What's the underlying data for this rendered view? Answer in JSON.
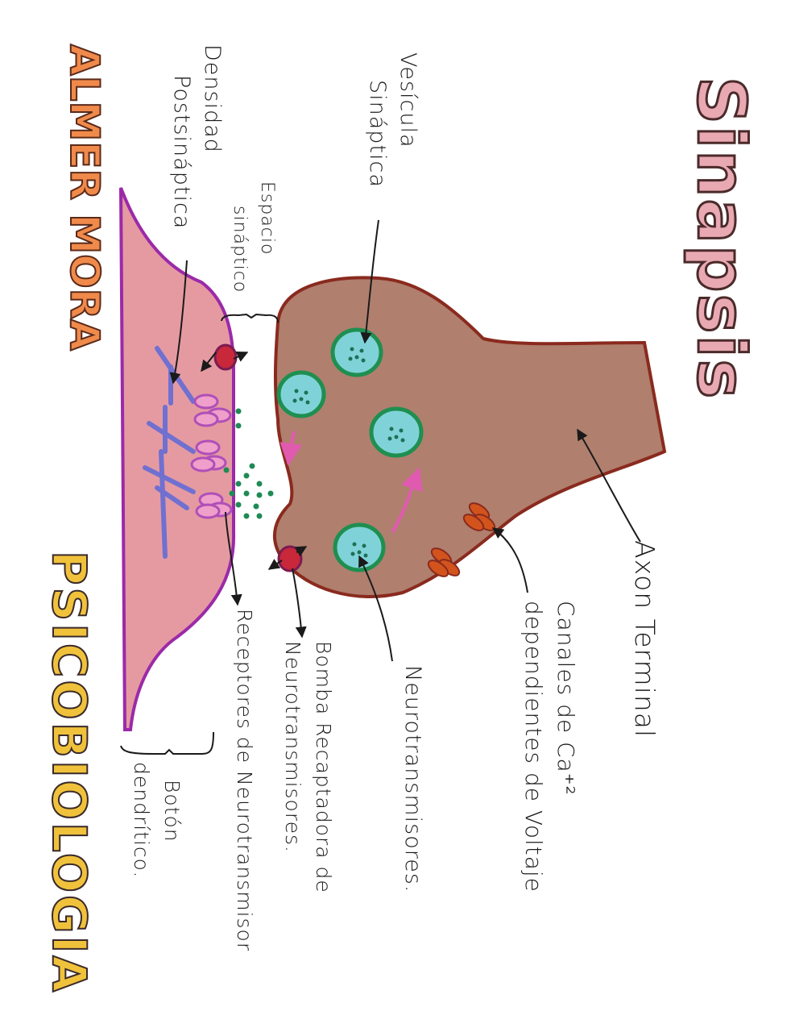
{
  "title": "Sinapsis",
  "side_title": "PSICOBIOLOGIA",
  "author": {
    "line1": "ALMER",
    "line2": "MORA"
  },
  "labels": {
    "vesicula": {
      "line1": "Vesícula",
      "line2": "Sináptica"
    },
    "densidad": {
      "line1": "Densidad",
      "line2": "Postsináptica"
    },
    "espacio": {
      "line1": "Espacio",
      "line2": "sináptico"
    },
    "axon": "Axon Terminal",
    "canales": {
      "line1": "Canales de Ca⁺²",
      "line2": "dependientes de Voltaje"
    },
    "neurotransmisores": "Neurotransmisores.",
    "bomba": {
      "line1": "Bomba Recaptadora de",
      "line2": "Neurotransmisores."
    },
    "receptores": "Receptores de Neurotransmisor",
    "boton": {
      "line1": "Botón",
      "line2": "dendrítico."
    }
  },
  "colors": {
    "axon_fill": "#b07f6e",
    "axon_outline": "#8a2a1e",
    "dendrite_fill": "#e59aa2",
    "dendrite_outline": "#9b2aa8",
    "vesicle_fill": "#7fd3d8",
    "vesicle_outline": "#1f8f50",
    "neurotransmitter": "#1f8a55",
    "title_fill": "#e8a9b3",
    "author_fill": "#f08a4b",
    "density_lines": "#7070d0",
    "receptor": "#b04fb8",
    "pump": "#c8283a",
    "calcium_channel": "#d2541c",
    "arrow": "#e05ab0"
  }
}
